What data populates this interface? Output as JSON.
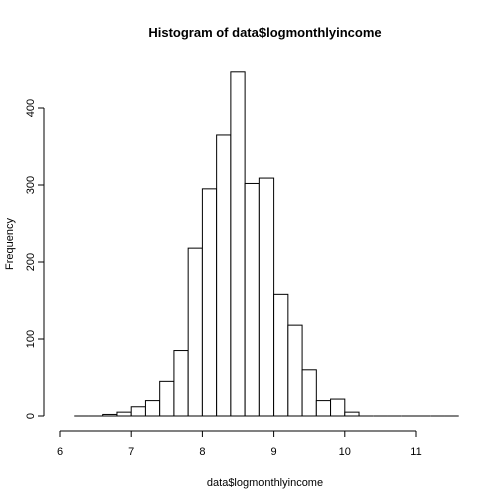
{
  "chart_data": {
    "type": "bar",
    "title": "Histogram of data$logmonthlyincome",
    "xlabel": "data$logmonthlyincome",
    "ylabel": "Frequency",
    "xlim": [
      6,
      11.6
    ],
    "ylim": [
      0,
      450
    ],
    "xticks": [
      6,
      7,
      8,
      9,
      10,
      11
    ],
    "yticks": [
      0,
      100,
      200,
      300,
      400
    ],
    "bin_width": 0.2,
    "bins": [
      {
        "start": 6.2,
        "count": 0
      },
      {
        "start": 6.4,
        "count": 0
      },
      {
        "start": 6.6,
        "count": 2
      },
      {
        "start": 6.8,
        "count": 5
      },
      {
        "start": 7.0,
        "count": 12
      },
      {
        "start": 7.2,
        "count": 20
      },
      {
        "start": 7.4,
        "count": 45
      },
      {
        "start": 7.6,
        "count": 85
      },
      {
        "start": 7.8,
        "count": 218
      },
      {
        "start": 8.0,
        "count": 295
      },
      {
        "start": 8.2,
        "count": 365
      },
      {
        "start": 8.4,
        "count": 447
      },
      {
        "start": 8.6,
        "count": 302
      },
      {
        "start": 8.8,
        "count": 309
      },
      {
        "start": 9.0,
        "count": 158
      },
      {
        "start": 9.2,
        "count": 118
      },
      {
        "start": 9.4,
        "count": 60
      },
      {
        "start": 9.6,
        "count": 20
      },
      {
        "start": 9.8,
        "count": 22
      },
      {
        "start": 10.0,
        "count": 5
      },
      {
        "start": 10.2,
        "count": 0
      },
      {
        "start": 10.4,
        "count": 0
      },
      {
        "start": 10.6,
        "count": 0
      },
      {
        "start": 10.8,
        "count": 0
      },
      {
        "start": 11.0,
        "count": 0
      },
      {
        "start": 11.2,
        "count": 0
      },
      {
        "start": 11.4,
        "count": 0
      }
    ]
  }
}
